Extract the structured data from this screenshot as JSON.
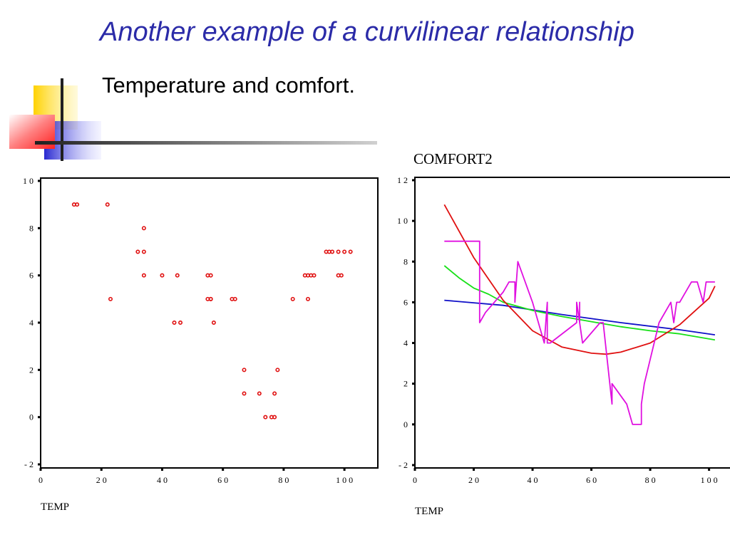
{
  "slide": {
    "title": "Another example of a curvilinear relationship",
    "subtitle": "Temperature and comfort."
  },
  "colors": {
    "title": "#2b2ba8",
    "scatter_point": "#e01010",
    "fit_linear": "#1010c8",
    "fit_quadratic": "#e01010",
    "fit_smooth": "#18e018",
    "fit_stepwise": "#e010e0",
    "deco_yellow": "#ffd200",
    "deco_red": "#ff2020",
    "deco_blue": "#2828d0"
  },
  "chart_data": [
    {
      "type": "scatter",
      "title": "",
      "xlabel": "TEMP",
      "ylabel": "",
      "xlim": [
        0,
        111
      ],
      "ylim": [
        -2,
        10
      ],
      "xticks": [
        0,
        20,
        40,
        60,
        80,
        100
      ],
      "xtick_labels": [
        "0",
        "2 0",
        "4 0",
        "6 0",
        "8 0",
        "1 0 0"
      ],
      "yticks": [
        10,
        8,
        6,
        4,
        2,
        0,
        -2
      ],
      "ytick_labels": [
        "1 0",
        "8",
        "6",
        "4",
        "2",
        "0",
        "- 2"
      ],
      "grid": false,
      "series": [
        {
          "points": [
            [
              11,
              9
            ],
            [
              12,
              9
            ],
            [
              22,
              9
            ],
            [
              23,
              5
            ],
            [
              32,
              7
            ],
            [
              34,
              7
            ],
            [
              34,
              8
            ],
            [
              34,
              6
            ],
            [
              40,
              6
            ],
            [
              45,
              6
            ],
            [
              44,
              4
            ],
            [
              46,
              4
            ],
            [
              55,
              6
            ],
            [
              56,
              6
            ],
            [
              55,
              5
            ],
            [
              56,
              5
            ],
            [
              56,
              5
            ],
            [
              57,
              4
            ],
            [
              63,
              5
            ],
            [
              64,
              5
            ],
            [
              67,
              2
            ],
            [
              67,
              1
            ],
            [
              72,
              1
            ],
            [
              74,
              0
            ],
            [
              76,
              0
            ],
            [
              77,
              0
            ],
            [
              77,
              1
            ],
            [
              78,
              2
            ],
            [
              83,
              5
            ],
            [
              87,
              6
            ],
            [
              88,
              6
            ],
            [
              89,
              6
            ],
            [
              90,
              6
            ],
            [
              88,
              5
            ],
            [
              94,
              7
            ],
            [
              95,
              7
            ],
            [
              96,
              7
            ],
            [
              98,
              7
            ],
            [
              98,
              6
            ],
            [
              99,
              6
            ],
            [
              100,
              7
            ],
            [
              102,
              7
            ]
          ]
        }
      ]
    },
    {
      "type": "line",
      "title": "COMFORT2",
      "xlabel": "TEMP",
      "ylabel": "",
      "xlim": [
        0,
        111
      ],
      "ylim": [
        -2,
        12
      ],
      "xticks": [
        0,
        20,
        40,
        60,
        80,
        100
      ],
      "xtick_labels": [
        "0",
        "2 0",
        "4 0",
        "6 0",
        "8 0",
        "1 0 0"
      ],
      "yticks": [
        12,
        10,
        8,
        6,
        4,
        2,
        0,
        -2
      ],
      "ytick_labels": [
        "1 2",
        "1 0",
        "8",
        "6",
        "4",
        "2",
        "0",
        "- 2"
      ],
      "grid": false,
      "series": [
        {
          "style": "linear",
          "points": [
            [
              10,
              6.1
            ],
            [
              30,
              5.85
            ],
            [
              50,
              5.4
            ],
            [
              70,
              5.0
            ],
            [
              90,
              4.65
            ],
            [
              102,
              4.4
            ]
          ]
        },
        {
          "style": "smooth",
          "points": [
            [
              10,
              7.8
            ],
            [
              15,
              7.2
            ],
            [
              20,
              6.7
            ],
            [
              25,
              6.4
            ],
            [
              30,
              6.0
            ],
            [
              40,
              5.6
            ],
            [
              50,
              5.3
            ],
            [
              60,
              5.05
            ],
            [
              70,
              4.8
            ],
            [
              80,
              4.6
            ],
            [
              90,
              4.45
            ],
            [
              102,
              4.15
            ]
          ]
        },
        {
          "style": "quadratic",
          "points": [
            [
              10,
              10.8
            ],
            [
              20,
              8.2
            ],
            [
              30,
              6.1
            ],
            [
              40,
              4.6
            ],
            [
              50,
              3.8
            ],
            [
              60,
              3.5
            ],
            [
              65,
              3.45
            ],
            [
              70,
              3.55
            ],
            [
              80,
              4.0
            ],
            [
              90,
              4.9
            ],
            [
              100,
              6.2
            ],
            [
              102,
              6.8
            ]
          ]
        },
        {
          "style": "stepwise",
          "points": [
            [
              10,
              9
            ],
            [
              22,
              9
            ],
            [
              22,
              5
            ],
            [
              24,
              5.5
            ],
            [
              30,
              6.5
            ],
            [
              32,
              7
            ],
            [
              34,
              7
            ],
            [
              34,
              6
            ],
            [
              35,
              8
            ],
            [
              40,
              6
            ],
            [
              44,
              4
            ],
            [
              45,
              6
            ],
            [
              45,
              4
            ],
            [
              46,
              4
            ],
            [
              55,
              5
            ],
            [
              55,
              6
            ],
            [
              56,
              5
            ],
            [
              56,
              6
            ],
            [
              56,
              5
            ],
            [
              57,
              4
            ],
            [
              63,
              5
            ],
            [
              64,
              5
            ],
            [
              67,
              1
            ],
            [
              67,
              2
            ],
            [
              72,
              1
            ],
            [
              74,
              0
            ],
            [
              77,
              0
            ],
            [
              77,
              1
            ],
            [
              78,
              2
            ],
            [
              83,
              5
            ],
            [
              87,
              6
            ],
            [
              88,
              5
            ],
            [
              89,
              6
            ],
            [
              90,
              6
            ],
            [
              94,
              7
            ],
            [
              96,
              7
            ],
            [
              98,
              6
            ],
            [
              99,
              7
            ],
            [
              102,
              7
            ]
          ]
        }
      ]
    }
  ]
}
